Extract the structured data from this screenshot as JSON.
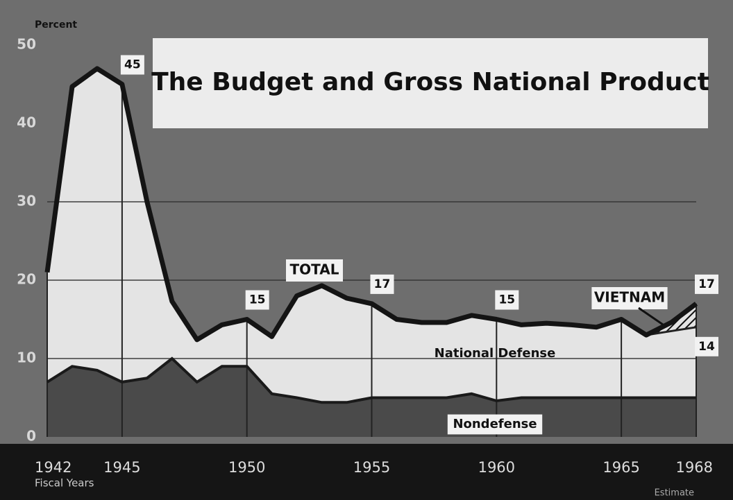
{
  "chart_data": {
    "type": "area",
    "title": "The Budget and Gross National Product",
    "y_label": "Percent",
    "x_label": "Fiscal Years",
    "x": [
      1942,
      1943,
      1944,
      1945,
      1946,
      1947,
      1948,
      1949,
      1950,
      1951,
      1952,
      1953,
      1954,
      1955,
      1956,
      1957,
      1958,
      1959,
      1960,
      1961,
      1962,
      1963,
      1964,
      1965,
      1966,
      1967,
      1968
    ],
    "series": [
      {
        "name": "TOTAL",
        "color": "#e4e4e4",
        "values": [
          21,
          44.7,
          47,
          45,
          30,
          17.3,
          12.4,
          14.3,
          15,
          12.8,
          18,
          19.3,
          17.7,
          17,
          15,
          14.6,
          14.6,
          15.5,
          15,
          14.3,
          14.5,
          14.3,
          14,
          15,
          13,
          14.6,
          17
        ],
        "value_labels": [
          null,
          null,
          null,
          "45",
          null,
          null,
          null,
          null,
          "15",
          null,
          null,
          null,
          null,
          "17",
          null,
          null,
          null,
          null,
          "15",
          null,
          null,
          null,
          null,
          "15",
          null,
          null,
          "17"
        ]
      },
      {
        "name": "Nondefense",
        "color": "#4a4a4a",
        "values": [
          7,
          9,
          8.5,
          7,
          7.5,
          10,
          7,
          9,
          9,
          5.5,
          5,
          4.4,
          4.4,
          5,
          5,
          5,
          5,
          5.5,
          4.6,
          5,
          5,
          5,
          5,
          5,
          5,
          5,
          5
        ]
      },
      {
        "name": "VIETNAM",
        "color": "#222222",
        "values": [
          null,
          null,
          null,
          null,
          null,
          null,
          null,
          null,
          null,
          null,
          null,
          null,
          null,
          null,
          null,
          null,
          null,
          null,
          null,
          null,
          null,
          null,
          null,
          null,
          13,
          13.5,
          14
        ],
        "value_labels": [
          null,
          null,
          null,
          null,
          null,
          null,
          null,
          null,
          null,
          null,
          null,
          null,
          null,
          null,
          null,
          null,
          null,
          null,
          null,
          null,
          null,
          null,
          null,
          null,
          null,
          null,
          "14"
        ]
      }
    ],
    "annotations": [
      "TOTAL",
      "National Defense",
      "Nondefense",
      "Estimate"
    ],
    "xlim": [
      1942,
      1968
    ],
    "xticks": [
      1942,
      1945,
      1950,
      1955,
      1960,
      1965,
      1968
    ],
    "ylim": [
      0,
      50
    ],
    "yticks": [
      0,
      10,
      20,
      30,
      40,
      50
    ],
    "grid": true
  }
}
